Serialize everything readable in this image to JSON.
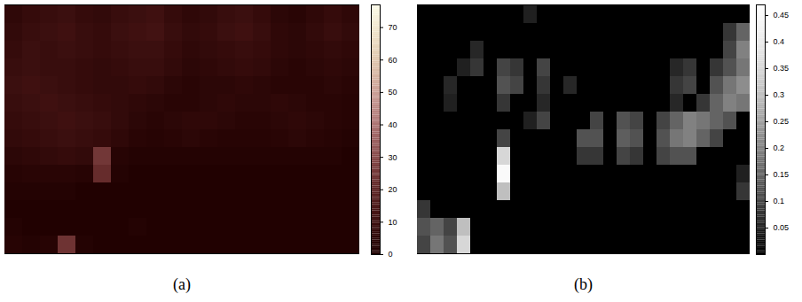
{
  "chart_data": [
    {
      "type": "heatmap",
      "caption": "(a)",
      "colorbar_range": [
        0,
        77
      ],
      "colorbar_ticks": [
        0,
        10,
        20,
        30,
        40,
        50,
        60,
        70
      ],
      "cells": [
        [
          6,
          8,
          9,
          10,
          8,
          7,
          9,
          10,
          11,
          8,
          6,
          7,
          9,
          10,
          8,
          5,
          4,
          6,
          8,
          6
        ],
        [
          7,
          9,
          10,
          11,
          9,
          8,
          10,
          11,
          12,
          9,
          7,
          8,
          10,
          11,
          9,
          6,
          5,
          7,
          9,
          7
        ],
        [
          8,
          10,
          9,
          10,
          9,
          8,
          9,
          10,
          10,
          8,
          6,
          7,
          8,
          9,
          8,
          6,
          5,
          6,
          7,
          6
        ],
        [
          9,
          10,
          9,
          9,
          8,
          7,
          8,
          9,
          9,
          7,
          5,
          6,
          7,
          8,
          7,
          5,
          4,
          5,
          6,
          5
        ],
        [
          10,
          11,
          10,
          9,
          8,
          7,
          7,
          8,
          7,
          5,
          4,
          5,
          5,
          6,
          5,
          4,
          4,
          4,
          5,
          4
        ],
        [
          9,
          10,
          11,
          10,
          9,
          8,
          7,
          6,
          5,
          4,
          4,
          5,
          6,
          5,
          5,
          6,
          5,
          4,
          4,
          3
        ],
        [
          8,
          9,
          10,
          11,
          10,
          9,
          7,
          5,
          4,
          5,
          6,
          6,
          5,
          4,
          4,
          5,
          6,
          5,
          4,
          3
        ],
        [
          7,
          8,
          9,
          10,
          9,
          8,
          6,
          4,
          3,
          4,
          5,
          4,
          3,
          3,
          3,
          4,
          5,
          4,
          3,
          2
        ],
        [
          5,
          6,
          7,
          8,
          7,
          25,
          3,
          2,
          2,
          2,
          2,
          2,
          2,
          2,
          2,
          2,
          2,
          2,
          2,
          1
        ],
        [
          3,
          4,
          4,
          4,
          3,
          22,
          2,
          1,
          1,
          1,
          1,
          1,
          1,
          1,
          1,
          1,
          1,
          1,
          1,
          1
        ],
        [
          2,
          2,
          2,
          2,
          1,
          1,
          1,
          1,
          1,
          1,
          1,
          1,
          1,
          1,
          1,
          1,
          1,
          1,
          1,
          1
        ],
        [
          1,
          1,
          1,
          1,
          1,
          1,
          1,
          1,
          1,
          1,
          1,
          1,
          1,
          1,
          1,
          1,
          1,
          1,
          1,
          1
        ],
        [
          2,
          1,
          1,
          1,
          1,
          1,
          1,
          2,
          1,
          1,
          1,
          1,
          1,
          1,
          1,
          1,
          1,
          1,
          1,
          1
        ],
        [
          3,
          2,
          3,
          24,
          2,
          1,
          1,
          1,
          1,
          1,
          1,
          1,
          1,
          1,
          1,
          1,
          1,
          1,
          1,
          1
        ]
      ]
    },
    {
      "type": "heatmap",
      "caption": "(b)",
      "colorbar_range": [
        0,
        0.47
      ],
      "colorbar_ticks": [
        0.05,
        0.1,
        0.15,
        0.2,
        0.25,
        0.3,
        0.35,
        0.4,
        0.45
      ],
      "cells": [
        [
          0,
          0,
          0,
          0,
          0,
          0,
          0,
          0,
          0.05,
          0,
          0,
          0,
          0,
          0,
          0,
          0,
          0,
          0,
          0,
          0,
          0,
          0,
          0,
          0,
          0
        ],
        [
          0,
          0,
          0,
          0,
          0,
          0,
          0,
          0,
          0,
          0,
          0,
          0,
          0,
          0,
          0,
          0,
          0,
          0,
          0,
          0,
          0,
          0,
          0,
          0.08,
          0.15
        ],
        [
          0,
          0,
          0,
          0,
          0.06,
          0,
          0,
          0,
          0,
          0,
          0,
          0,
          0,
          0,
          0,
          0,
          0,
          0,
          0,
          0,
          0,
          0,
          0,
          0.1,
          0.2
        ],
        [
          0,
          0,
          0,
          0.05,
          0.08,
          0,
          0.1,
          0.08,
          0,
          0.1,
          0,
          0,
          0,
          0,
          0,
          0,
          0,
          0,
          0,
          0.06,
          0.08,
          0,
          0.08,
          0.12,
          0.18
        ],
        [
          0,
          0,
          0.06,
          0,
          0,
          0,
          0.12,
          0.1,
          0,
          0.08,
          0,
          0.06,
          0,
          0,
          0,
          0,
          0,
          0,
          0,
          0.08,
          0.1,
          0,
          0.12,
          0.18,
          0.22
        ],
        [
          0,
          0,
          0.05,
          0,
          0,
          0,
          0.08,
          0,
          0,
          0.06,
          0,
          0,
          0,
          0,
          0,
          0,
          0,
          0,
          0,
          0.06,
          0,
          0.08,
          0.15,
          0.2,
          0.18
        ],
        [
          0,
          0,
          0,
          0,
          0,
          0,
          0,
          0,
          0.05,
          0.1,
          0,
          0,
          0,
          0.1,
          0,
          0.12,
          0.1,
          0,
          0.1,
          0.15,
          0.2,
          0.18,
          0.15,
          0.12,
          0
        ],
        [
          0,
          0,
          0,
          0,
          0,
          0,
          0.1,
          0,
          0,
          0,
          0,
          0,
          0.12,
          0.12,
          0,
          0.14,
          0.12,
          0,
          0.12,
          0.18,
          0.2,
          0.15,
          0.1,
          0,
          0
        ],
        [
          0,
          0,
          0,
          0,
          0,
          0,
          0.35,
          0,
          0,
          0,
          0,
          0,
          0.08,
          0.08,
          0,
          0.1,
          0.08,
          0,
          0.1,
          0.12,
          0.12,
          0,
          0,
          0,
          0
        ],
        [
          0,
          0,
          0,
          0,
          0,
          0,
          0.45,
          0,
          0,
          0,
          0,
          0,
          0,
          0,
          0,
          0,
          0,
          0,
          0,
          0,
          0,
          0,
          0,
          0,
          0.05
        ],
        [
          0,
          0,
          0,
          0,
          0,
          0,
          0.3,
          0,
          0,
          0,
          0,
          0,
          0,
          0,
          0,
          0,
          0,
          0,
          0,
          0,
          0,
          0,
          0,
          0,
          0.08
        ],
        [
          0.08,
          0,
          0,
          0,
          0,
          0,
          0,
          0,
          0,
          0,
          0,
          0,
          0,
          0,
          0,
          0,
          0,
          0,
          0,
          0,
          0,
          0,
          0,
          0,
          0
        ],
        [
          0.12,
          0.15,
          0.1,
          0.3,
          0,
          0,
          0,
          0,
          0,
          0,
          0,
          0,
          0,
          0,
          0,
          0,
          0,
          0,
          0,
          0,
          0,
          0,
          0,
          0,
          0
        ],
        [
          0.1,
          0.18,
          0.12,
          0.35,
          0,
          0,
          0,
          0,
          0,
          0,
          0,
          0,
          0,
          0,
          0,
          0,
          0,
          0,
          0,
          0,
          0,
          0,
          0,
          0,
          0
        ]
      ]
    }
  ]
}
